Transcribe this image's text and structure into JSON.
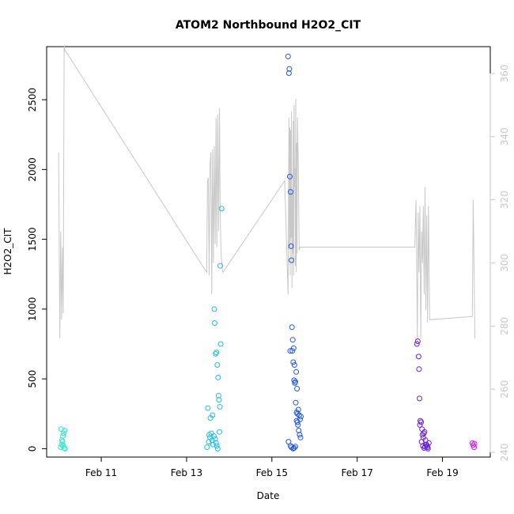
{
  "chart_data": {
    "type": "scatter",
    "title": "ATOM2 Northbound H2O2_CIT",
    "xlabel": "Date",
    "ylabel": "H2O2_CIT",
    "x_ticks": [
      "Feb 11",
      "Feb 13",
      "Feb 15",
      "Feb 17",
      "Feb 19"
    ],
    "x_tick_days": [
      11,
      13,
      15,
      17,
      19
    ],
    "xlim_days": [
      9.72,
      20.12
    ],
    "y_ticks": [
      0,
      500,
      1000,
      1500,
      2000,
      2500
    ],
    "ylim": [
      -60,
      2880
    ],
    "y2_ticks": [
      240,
      260,
      280,
      300,
      320,
      340,
      360
    ],
    "y2lim": [
      238.5,
      368.5
    ],
    "grid": false,
    "legend": "none",
    "colors": {
      "points_by_day": [
        "#2ee8c8",
        "#22bde8",
        "#2255e8",
        "#6a1ee0",
        "#c81ee8"
      ],
      "secondary_line": "#c8c8c8",
      "secondary_axis_text": "#c8c8c8",
      "axis": "#000000"
    },
    "series": [
      {
        "kind": "points",
        "color_index": 0,
        "x": [
          10.05,
          10.07,
          10.08,
          10.1,
          10.12,
          10.14,
          10.06,
          10.09,
          10.11,
          10.13,
          10.15
        ],
        "y": [
          10,
          30,
          60,
          90,
          110,
          130,
          140,
          50,
          20,
          5,
          0
        ]
      },
      {
        "kind": "points",
        "color_index": 1,
        "x": [
          13.48,
          13.52,
          13.55,
          13.58,
          13.6,
          13.62,
          13.65,
          13.66,
          13.68,
          13.7,
          13.72,
          13.74,
          13.75,
          13.76,
          13.78,
          13.8,
          13.56,
          13.61,
          13.64,
          13.69,
          13.71,
          13.73,
          13.77,
          13.5,
          13.53,
          13.67,
          13.79,
          13.82
        ],
        "y": [
          10,
          50,
          80,
          110,
          60,
          30,
          1000,
          900,
          680,
          690,
          600,
          510,
          380,
          350,
          300,
          750,
          220,
          240,
          90,
          40,
          20,
          0,
          120,
          290,
          100,
          70,
          1310,
          1720
        ]
      },
      {
        "kind": "points",
        "color_index": 2,
        "x": [
          15.38,
          15.4,
          15.41,
          15.42,
          15.44,
          15.45,
          15.46,
          15.47,
          15.48,
          15.5,
          15.52,
          15.54,
          15.55,
          15.56,
          15.58,
          15.6,
          15.62,
          15.64,
          15.66,
          15.68,
          15.43,
          15.49,
          15.51,
          15.53,
          15.57,
          15.59,
          15.61,
          15.63,
          15.65,
          15.67,
          15.39,
          15.44,
          15.46,
          15.5,
          15.52,
          15.55,
          15.58,
          15.6
        ],
        "y": [
          2810,
          2690,
          2720,
          1950,
          1840,
          1450,
          1350,
          870,
          700,
          620,
          490,
          470,
          480,
          330,
          260,
          250,
          280,
          240,
          210,
          230,
          700,
          780,
          720,
          600,
          550,
          430,
          170,
          130,
          100,
          80,
          50,
          20,
          10,
          0,
          5,
          15,
          200,
          190
        ]
      },
      {
        "kind": "points",
        "color_index": 3,
        "x": [
          18.4,
          18.42,
          18.44,
          18.45,
          18.46,
          18.48,
          18.5,
          18.52,
          18.53,
          18.55,
          18.56,
          18.58,
          18.6,
          18.62,
          18.64,
          18.65,
          18.66,
          18.68,
          18.47,
          18.51,
          18.54,
          18.57,
          18.59,
          18.61
        ],
        "y": [
          750,
          770,
          660,
          570,
          360,
          200,
          190,
          140,
          100,
          80,
          110,
          120,
          60,
          30,
          20,
          10,
          0,
          40,
          170,
          50,
          20,
          5,
          15,
          30
        ]
      },
      {
        "kind": "points",
        "color_index": 4,
        "x": [
          19.7,
          19.72,
          19.74,
          19.75
        ],
        "y": [
          40,
          25,
          10,
          35
        ]
      },
      {
        "kind": "line",
        "axis": "secondary",
        "x": [
          10.0,
          10.03,
          10.05,
          10.07,
          10.09,
          10.11,
          10.13,
          10.15,
          10.17,
          13.47,
          13.49,
          13.51,
          13.53,
          13.55,
          13.57,
          13.59,
          13.61,
          13.63,
          13.65,
          13.67,
          13.69,
          13.71,
          13.73,
          13.75,
          13.77,
          13.79,
          13.81,
          13.83,
          13.85,
          15.3,
          15.38,
          15.39,
          15.4,
          15.41,
          15.42,
          15.43,
          15.44,
          15.45,
          15.46,
          15.47,
          15.48,
          15.49,
          15.5,
          15.51,
          15.52,
          15.53,
          15.54,
          15.55,
          15.56,
          15.57,
          15.58,
          15.59,
          15.6,
          15.62,
          15.64,
          15.66,
          15.7,
          18.35,
          18.38,
          18.41,
          18.43,
          18.45,
          18.47,
          18.49,
          18.51,
          18.53,
          18.55,
          18.57,
          18.59,
          18.61,
          18.63,
          18.65,
          18.67,
          18.7,
          19.7,
          19.72,
          19.76
        ],
        "y": [
          335,
          276,
          310,
          282,
          305,
          284,
          369,
          367,
          367,
          297,
          326,
          327,
          296,
          331,
          335,
          290,
          336,
          300,
          337,
          306,
          346,
          305,
          347,
          310,
          349,
          315,
          303,
          299,
          297,
          326,
          290,
          322,
          346,
          305,
          343,
          296,
          342,
          308,
          348,
          292,
          322,
          303,
          345,
          296,
          350,
          324,
          330,
          299,
          352,
          297,
          338,
          303,
          346,
          331,
          304,
          305,
          305,
          305,
          320,
          275,
          316,
          297,
          318,
          276,
          310,
          300,
          318,
          290,
          324,
          285,
          315,
          281,
          318,
          282,
          283,
          320,
          276
        ]
      }
    ]
  }
}
